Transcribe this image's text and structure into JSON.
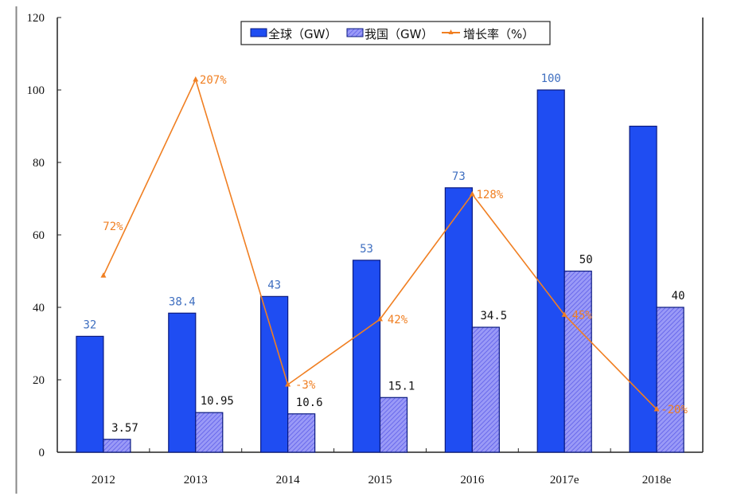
{
  "chart_data": {
    "type": "bar",
    "title": "",
    "xlabel": "",
    "ylabel": "",
    "ylim": [
      0,
      120
    ],
    "yticks": [
      0,
      20,
      40,
      60,
      80,
      100,
      120
    ],
    "categories": [
      "2012",
      "2013",
      "2014",
      "2015",
      "2016",
      "2017e",
      "2018e"
    ],
    "series": [
      {
        "name": "全球（GW）",
        "type": "bar",
        "color": "#1f4df2",
        "values": [
          32,
          38.4,
          43,
          53,
          73,
          100,
          90
        ],
        "labels": [
          "32",
          "38.4",
          "43",
          "53",
          "73",
          "100",
          ""
        ]
      },
      {
        "name": "我国（GW）",
        "type": "bar",
        "color": "#8c8cf5",
        "values": [
          3.57,
          10.95,
          10.6,
          15.1,
          34.5,
          50,
          40
        ],
        "labels": [
          "3.57",
          "10.95",
          "10.6",
          "15.1",
          "34.5",
          "50",
          "40"
        ]
      },
      {
        "name": "增长率（%）",
        "type": "line",
        "axis": "secondary",
        "color": "#f07f22",
        "values": [
          72,
          207,
          -3,
          42,
          128,
          45,
          -20
        ],
        "labels": [
          "72%",
          "207%",
          "-3%",
          "42%",
          "128%",
          "45%",
          "-20%"
        ]
      }
    ],
    "legend_position": "top-center",
    "grid": false
  }
}
